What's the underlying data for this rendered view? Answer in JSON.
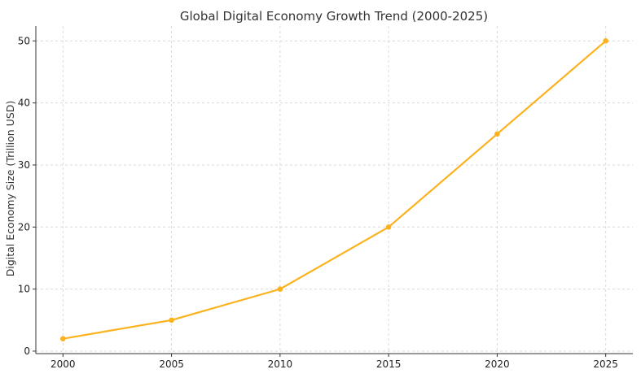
{
  "chart_data": {
    "type": "line",
    "title": "Global Digital Economy Growth Trend (2000-2025)",
    "xlabel": "",
    "ylabel": "Digital Economy Size (Trillion USD)",
    "x": [
      2000,
      2005,
      2010,
      2015,
      2020,
      2025
    ],
    "series": [
      {
        "values": [
          2,
          5,
          10,
          20,
          35,
          50
        ]
      }
    ],
    "xticks": [
      2000,
      2005,
      2010,
      2015,
      2020,
      2025
    ],
    "yticks": [
      0,
      10,
      20,
      30,
      40,
      50
    ],
    "xlim": [
      1998.75,
      2026.25
    ],
    "ylim": [
      -0.4,
      52.4
    ],
    "grid": true,
    "colors": {
      "line": "#FBB21C",
      "grid": "#d9d9d9",
      "axis": "#333333"
    }
  }
}
